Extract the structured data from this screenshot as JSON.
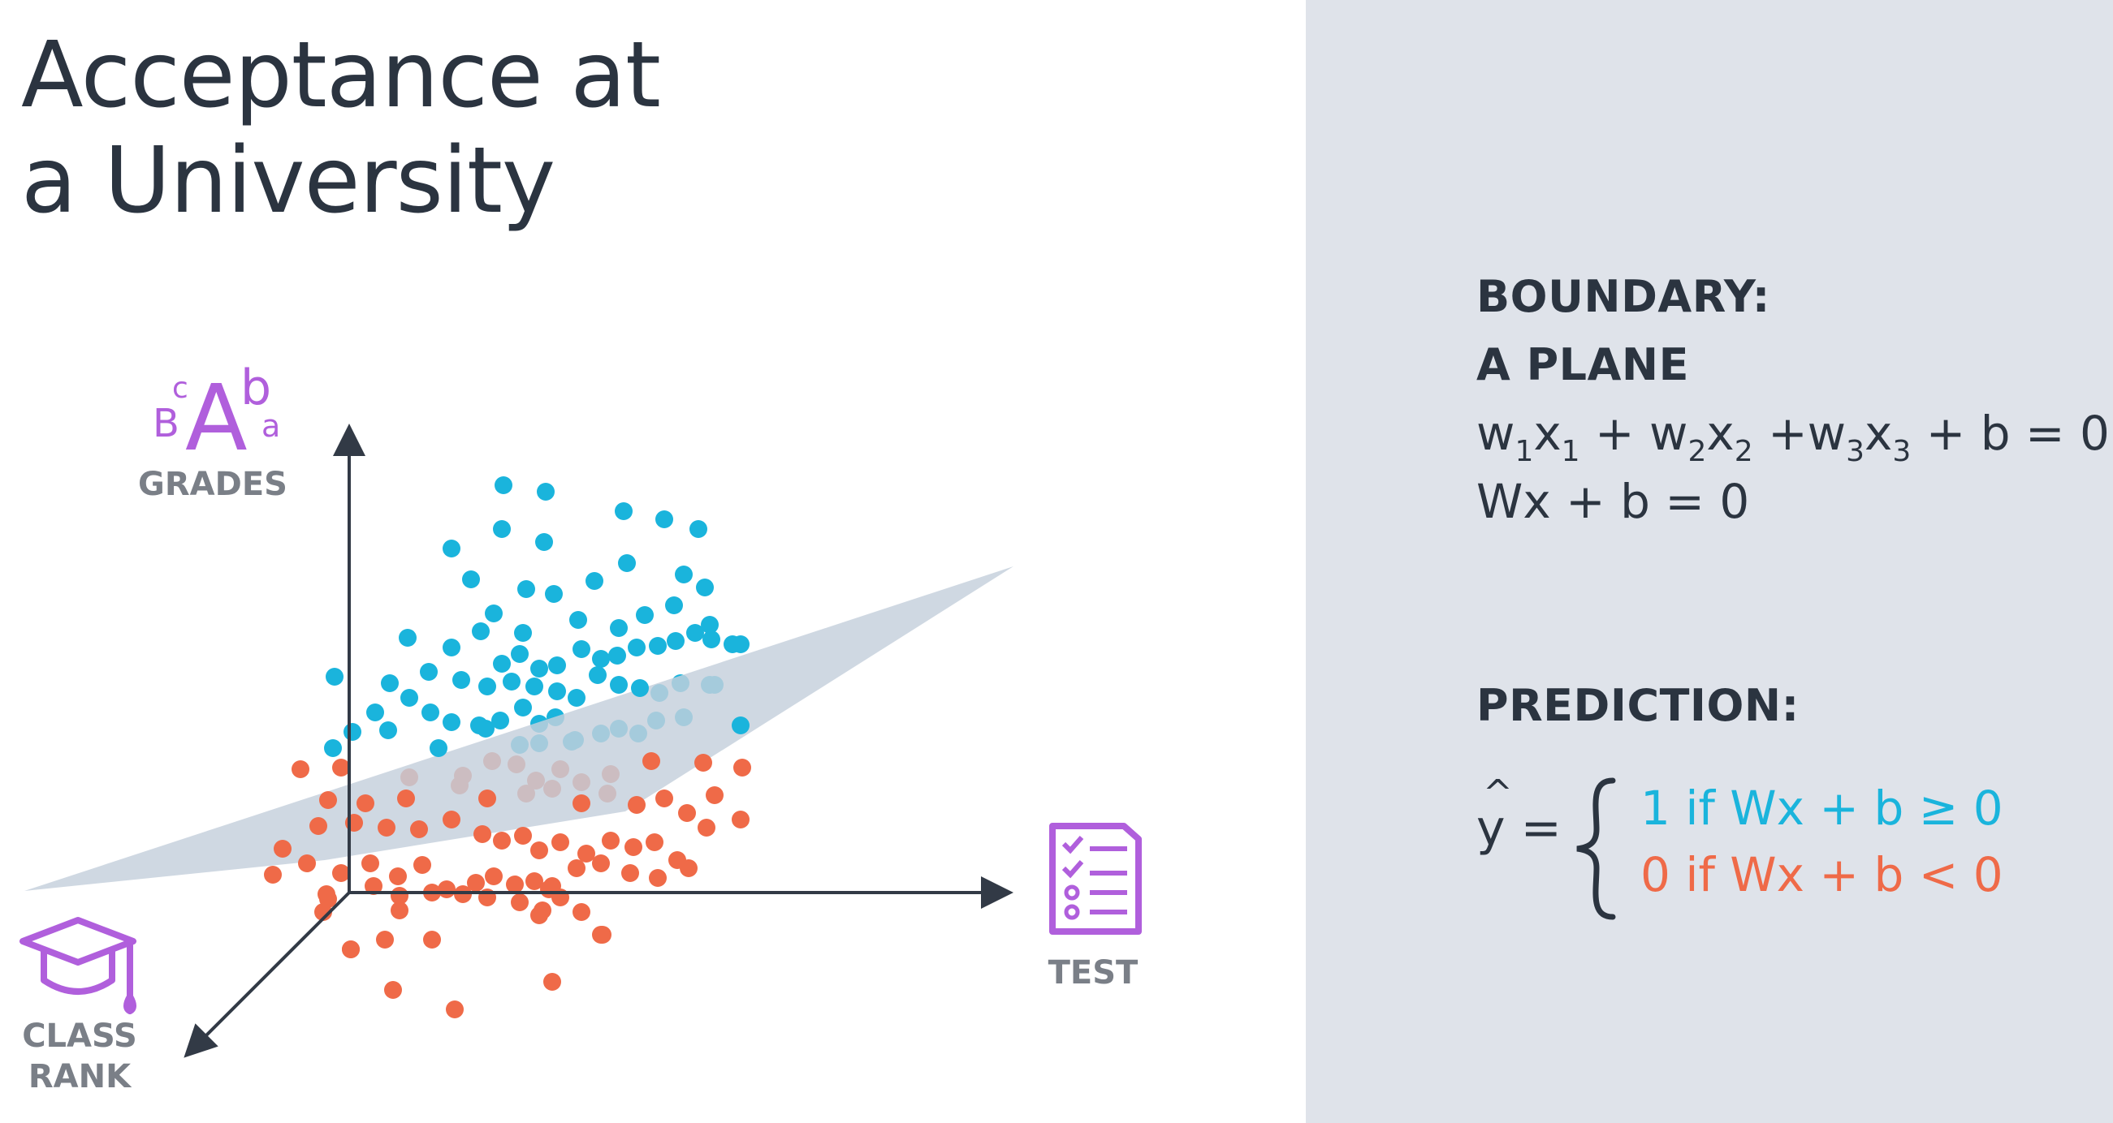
{
  "title": {
    "line1": "Acceptance at",
    "line2": "a University"
  },
  "axes": {
    "grades": "GRADES",
    "test": "TEST",
    "class_rank_line1": "CLASS",
    "class_rank_line2": "RANK",
    "grade_letters": [
      "B",
      "c",
      "A",
      "b",
      "a"
    ]
  },
  "colors": {
    "accepted": "#1ab4dc",
    "rejected": "#ef6a48",
    "plane": "#c5cfdc",
    "icon": "#b05fdc",
    "axis": "#323a46",
    "panel": "#dfe3ea"
  },
  "icons": [
    "graduation-cap-icon",
    "checklist-icon",
    "grades-letters-icon"
  ],
  "boundary": {
    "heading_line1": "BOUNDARY:",
    "heading_line2": "A PLANE",
    "equation_terms": [
      "w",
      "1",
      "x",
      "1",
      " + w",
      "2",
      "x",
      "2",
      " +w",
      "3",
      "x",
      "3",
      " + b = 0"
    ],
    "vector_form": "Wx + b = 0"
  },
  "prediction": {
    "heading": "PREDICTION:",
    "yhat": "y =",
    "hat": "^",
    "case_positive": "1 if Wx + b ≥ 0",
    "case_negative": "0 if Wx + b < 0"
  }
}
